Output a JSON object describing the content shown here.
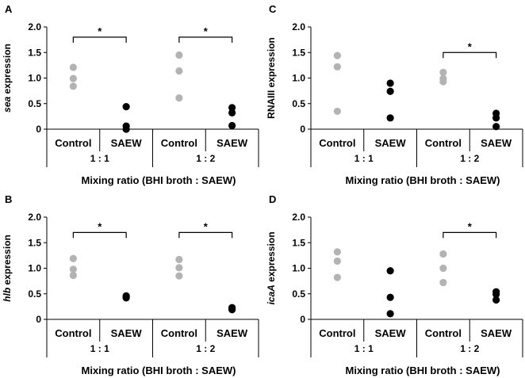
{
  "colors": {
    "control": "#b3b3b3",
    "saew": "#000000",
    "axis": "#000000"
  },
  "chart_data": [
    {
      "type": "scatter",
      "panel": "A",
      "ylabel_italic": "sea",
      "ylabel_rest": " expression",
      "ylim": [
        0,
        2.0
      ],
      "yticks": [
        "0",
        "0.5",
        "1.0",
        "1.5",
        "2.0"
      ],
      "categories": [
        "Control",
        "SAEW",
        "Control",
        "SAEW"
      ],
      "groups": [
        "1 : 1",
        "1 : 2"
      ],
      "xlabel": "Mixing ratio (BHI broth : SAEW)",
      "series": [
        {
          "name": "Control",
          "group": "1 : 1",
          "values": [
            0.84,
            0.99,
            1.21
          ]
        },
        {
          "name": "SAEW",
          "group": "1 : 1",
          "values": [
            0.0,
            0.06,
            0.44
          ]
        },
        {
          "name": "Control",
          "group": "1 : 2",
          "values": [
            0.61,
            1.14,
            1.45
          ]
        },
        {
          "name": "SAEW",
          "group": "1 : 2",
          "values": [
            0.07,
            0.32,
            0.42
          ]
        }
      ],
      "significance": [
        {
          "label": "*",
          "group": "1 : 1",
          "y": 1.8
        },
        {
          "label": "*",
          "group": "1 : 2",
          "y": 1.8
        }
      ]
    },
    {
      "type": "scatter",
      "panel": "C",
      "ylabel_italic": "",
      "ylabel_rest": "RNAIII expression",
      "ylim": [
        0,
        2.0
      ],
      "yticks": [
        "0",
        "0.5",
        "1.0",
        "1.5",
        "2.0"
      ],
      "categories": [
        "Control",
        "SAEW",
        "Control",
        "SAEW"
      ],
      "groups": [
        "1 : 1",
        "1 : 2"
      ],
      "xlabel": "Mixing ratio (BHI broth : SAEW)",
      "series": [
        {
          "name": "Control",
          "group": "1 : 1",
          "values": [
            0.35,
            1.22,
            1.44
          ]
        },
        {
          "name": "SAEW",
          "group": "1 : 1",
          "values": [
            0.22,
            0.74,
            0.9
          ]
        },
        {
          "name": "Control",
          "group": "1 : 2",
          "values": [
            0.93,
            0.99,
            1.11
          ]
        },
        {
          "name": "SAEW",
          "group": "1 : 2",
          "values": [
            0.05,
            0.22,
            0.31
          ]
        }
      ],
      "significance": [
        {
          "label": "*",
          "group": "1 : 2",
          "y": 1.5
        }
      ]
    },
    {
      "type": "scatter",
      "panel": "B",
      "ylabel_italic": "hlb",
      "ylabel_rest": " expression",
      "ylim": [
        0,
        2.0
      ],
      "yticks": [
        "0",
        "0.5",
        "1.0",
        "1.5",
        "2.0"
      ],
      "categories": [
        "Control",
        "SAEW",
        "Control",
        "SAEW"
      ],
      "groups": [
        "1 : 1",
        "1 : 2"
      ],
      "xlabel": "Mixing ratio (BHI broth : SAEW)",
      "series": [
        {
          "name": "Control",
          "group": "1 : 1",
          "values": [
            0.86,
            0.98,
            1.19
          ]
        },
        {
          "name": "SAEW",
          "group": "1 : 1",
          "values": [
            0.42,
            0.44,
            0.46
          ]
        },
        {
          "name": "Control",
          "group": "1 : 2",
          "values": [
            0.85,
            1.01,
            1.17
          ]
        },
        {
          "name": "SAEW",
          "group": "1 : 2",
          "values": [
            0.19,
            0.21,
            0.23
          ]
        }
      ],
      "significance": [
        {
          "label": "*",
          "group": "1 : 1",
          "y": 1.7
        },
        {
          "label": "*",
          "group": "1 : 2",
          "y": 1.7
        }
      ]
    },
    {
      "type": "scatter",
      "panel": "D",
      "ylabel_italic": "icaA",
      "ylabel_rest": " expression",
      "ylim": [
        0,
        2.0
      ],
      "yticks": [
        "0",
        "0.5",
        "1.0",
        "1.5",
        "2.0"
      ],
      "categories": [
        "Control",
        "SAEW",
        "Control",
        "SAEW"
      ],
      "groups": [
        "1 : 1",
        "1 : 2"
      ],
      "xlabel": "Mixing ratio (BHI broth : SAEW)",
      "series": [
        {
          "name": "Control",
          "group": "1 : 1",
          "values": [
            0.82,
            1.14,
            1.32
          ]
        },
        {
          "name": "SAEW",
          "group": "1 : 1",
          "values": [
            0.11,
            0.43,
            0.95
          ]
        },
        {
          "name": "Control",
          "group": "1 : 2",
          "values": [
            0.72,
            1.0,
            1.28
          ]
        },
        {
          "name": "SAEW",
          "group": "1 : 2",
          "values": [
            0.38,
            0.49,
            0.54
          ]
        }
      ],
      "significance": [
        {
          "label": "*",
          "group": "1 : 2",
          "y": 1.7
        }
      ]
    }
  ]
}
